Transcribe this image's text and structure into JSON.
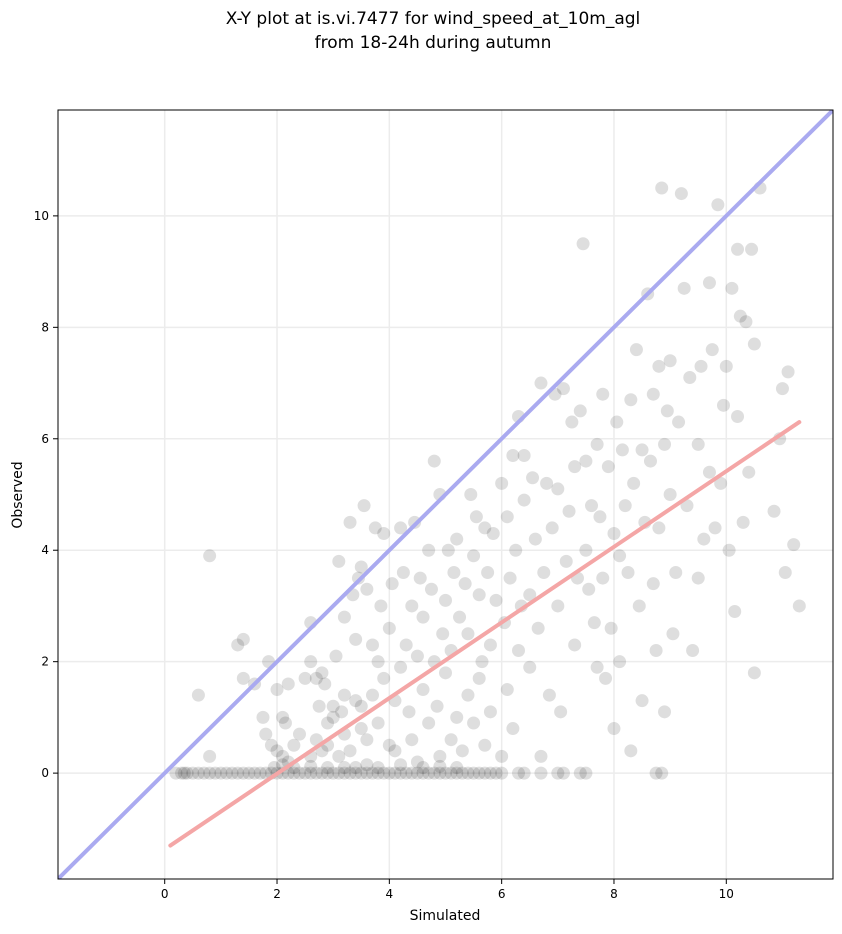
{
  "chart_data": {
    "type": "scatter",
    "title_line1": "X-Y plot at is.vi.7477 for wind_speed_at_10m_agl",
    "title_line2": "from 18-24h during autumn",
    "xlabel": "Simulated",
    "ylabel": "Observed",
    "xlim": [
      -1.9,
      11.9
    ],
    "ylim": [
      -1.9,
      11.9
    ],
    "xticks": [
      0,
      2,
      4,
      6,
      8,
      10
    ],
    "yticks": [
      0,
      2,
      4,
      6,
      8,
      10
    ],
    "grid": true,
    "colors": {
      "points": "#000000",
      "identity_line": "#aaaaf0",
      "fit_line": "#f4a6a6",
      "grid": "#ececec"
    },
    "identity_line": {
      "x": [
        -1.9,
        11.9
      ],
      "y": [
        -1.9,
        11.9
      ]
    },
    "fit_line": {
      "x": [
        0.1,
        11.3
      ],
      "y": [
        -1.3,
        6.3
      ]
    },
    "points": [
      [
        0.2,
        0
      ],
      [
        0.3,
        0
      ],
      [
        0.35,
        0
      ],
      [
        0.4,
        0
      ],
      [
        0.5,
        0
      ],
      [
        0.6,
        0
      ],
      [
        0.7,
        0
      ],
      [
        0.8,
        0
      ],
      [
        0.9,
        0
      ],
      [
        1.0,
        0
      ],
      [
        1.1,
        0
      ],
      [
        1.2,
        0
      ],
      [
        1.3,
        0
      ],
      [
        1.4,
        0
      ],
      [
        1.5,
        0
      ],
      [
        1.6,
        0
      ],
      [
        1.7,
        0
      ],
      [
        1.8,
        0
      ],
      [
        1.9,
        0
      ],
      [
        2.0,
        0
      ],
      [
        2.1,
        0
      ],
      [
        2.2,
        0
      ],
      [
        2.3,
        0
      ],
      [
        2.4,
        0
      ],
      [
        2.5,
        0
      ],
      [
        2.6,
        0
      ],
      [
        2.7,
        0
      ],
      [
        2.8,
        0
      ],
      [
        2.9,
        0
      ],
      [
        3.0,
        0
      ],
      [
        3.1,
        0
      ],
      [
        3.2,
        0
      ],
      [
        3.3,
        0
      ],
      [
        3.4,
        0
      ],
      [
        3.5,
        0
      ],
      [
        3.6,
        0
      ],
      [
        3.7,
        0
      ],
      [
        3.8,
        0
      ],
      [
        3.9,
        0
      ],
      [
        4.0,
        0
      ],
      [
        4.1,
        0
      ],
      [
        4.2,
        0
      ],
      [
        4.3,
        0
      ],
      [
        4.4,
        0
      ],
      [
        4.5,
        0
      ],
      [
        4.6,
        0
      ],
      [
        4.7,
        0
      ],
      [
        4.8,
        0
      ],
      [
        4.9,
        0
      ],
      [
        5.0,
        0
      ],
      [
        5.1,
        0
      ],
      [
        5.2,
        0
      ],
      [
        5.3,
        0
      ],
      [
        5.4,
        0
      ],
      [
        5.5,
        0
      ],
      [
        5.6,
        0
      ],
      [
        5.7,
        0
      ],
      [
        5.8,
        0
      ],
      [
        5.9,
        0
      ],
      [
        6.0,
        0
      ],
      [
        6.3,
        0
      ],
      [
        6.4,
        0
      ],
      [
        6.7,
        0
      ],
      [
        7.0,
        0
      ],
      [
        7.1,
        0
      ],
      [
        7.4,
        0
      ],
      [
        7.5,
        0
      ],
      [
        8.75,
        0
      ],
      [
        8.85,
        0
      ],
      [
        1.95,
        0.1
      ],
      [
        2.3,
        0.1
      ],
      [
        2.9,
        0.1
      ],
      [
        3.2,
        0.1
      ],
      [
        3.4,
        0.1
      ],
      [
        3.8,
        0.1
      ],
      [
        4.2,
        0.15
      ],
      [
        4.6,
        0.1
      ],
      [
        5.2,
        0.1
      ],
      [
        2.1,
        0.15
      ],
      [
        2.6,
        0.12
      ],
      [
        3.6,
        0.15
      ],
      [
        4.9,
        0.12
      ],
      [
        0.6,
        1.4
      ],
      [
        0.8,
        0.3
      ],
      [
        0.8,
        3.9
      ],
      [
        1.3,
        2.3
      ],
      [
        1.4,
        2.4
      ],
      [
        1.4,
        1.7
      ],
      [
        1.6,
        1.6
      ],
      [
        1.75,
        1.0
      ],
      [
        1.8,
        0.7
      ],
      [
        1.85,
        2.0
      ],
      [
        1.9,
        0.5
      ],
      [
        2.0,
        1.5
      ],
      [
        2.0,
        0.4
      ],
      [
        2.1,
        0.3
      ],
      [
        2.1,
        1.0
      ],
      [
        2.15,
        0.9
      ],
      [
        2.2,
        0.2
      ],
      [
        2.2,
        1.6
      ],
      [
        2.3,
        0.5
      ],
      [
        2.4,
        0.7
      ],
      [
        2.5,
        1.7
      ],
      [
        2.6,
        0.3
      ],
      [
        2.6,
        2.0
      ],
      [
        2.6,
        2.7
      ],
      [
        2.7,
        1.7
      ],
      [
        2.7,
        0.6
      ],
      [
        2.75,
        1.2
      ],
      [
        2.8,
        0.4
      ],
      [
        2.8,
        1.8
      ],
      [
        2.85,
        1.6
      ],
      [
        2.9,
        0.9
      ],
      [
        2.9,
        0.5
      ],
      [
        3.0,
        1.0
      ],
      [
        3.0,
        1.2
      ],
      [
        3.05,
        2.1
      ],
      [
        3.1,
        0.3
      ],
      [
        3.1,
        3.8
      ],
      [
        3.15,
        1.1
      ],
      [
        3.2,
        2.8
      ],
      [
        3.2,
        0.7
      ],
      [
        3.2,
        1.4
      ],
      [
        3.3,
        4.5
      ],
      [
        3.3,
        0.4
      ],
      [
        3.35,
        3.2
      ],
      [
        3.4,
        1.3
      ],
      [
        3.4,
        2.4
      ],
      [
        3.45,
        3.5
      ],
      [
        3.5,
        3.7
      ],
      [
        3.5,
        0.8
      ],
      [
        3.5,
        1.2
      ],
      [
        3.55,
        4.8
      ],
      [
        3.6,
        0.6
      ],
      [
        3.6,
        3.3
      ],
      [
        3.7,
        2.3
      ],
      [
        3.7,
        1.4
      ],
      [
        3.75,
        4.4
      ],
      [
        3.8,
        0.9
      ],
      [
        3.8,
        2.0
      ],
      [
        3.85,
        3.0
      ],
      [
        3.9,
        1.7
      ],
      [
        3.9,
        4.3
      ],
      [
        4.0,
        0.5
      ],
      [
        4.0,
        2.6
      ],
      [
        4.05,
        3.4
      ],
      [
        4.1,
        1.3
      ],
      [
        4.1,
        0.4
      ],
      [
        4.2,
        1.9
      ],
      [
        4.2,
        4.4
      ],
      [
        4.25,
        3.6
      ],
      [
        4.3,
        2.3
      ],
      [
        4.35,
        1.1
      ],
      [
        4.4,
        0.6
      ],
      [
        4.4,
        3.0
      ],
      [
        4.45,
        4.5
      ],
      [
        4.5,
        2.1
      ],
      [
        4.5,
        0.2
      ],
      [
        4.55,
        3.5
      ],
      [
        4.6,
        1.5
      ],
      [
        4.6,
        2.8
      ],
      [
        4.7,
        0.9
      ],
      [
        4.7,
        4.0
      ],
      [
        4.75,
        3.3
      ],
      [
        4.8,
        5.6
      ],
      [
        4.8,
        2.0
      ],
      [
        4.85,
        1.2
      ],
      [
        4.9,
        0.3
      ],
      [
        4.9,
        5.0
      ],
      [
        4.95,
        2.5
      ],
      [
        5.0,
        1.8
      ],
      [
        5.0,
        3.1
      ],
      [
        5.05,
        4.0
      ],
      [
        5.1,
        0.6
      ],
      [
        5.1,
        2.2
      ],
      [
        5.15,
        3.6
      ],
      [
        5.2,
        1.0
      ],
      [
        5.2,
        4.2
      ],
      [
        5.25,
        2.8
      ],
      [
        5.3,
        0.4
      ],
      [
        5.35,
        3.4
      ],
      [
        5.4,
        1.4
      ],
      [
        5.4,
        2.5
      ],
      [
        5.45,
        5.0
      ],
      [
        5.5,
        0.9
      ],
      [
        5.5,
        3.9
      ],
      [
        5.55,
        4.6
      ],
      [
        5.6,
        1.7
      ],
      [
        5.6,
        3.2
      ],
      [
        5.65,
        2.0
      ],
      [
        5.7,
        0.5
      ],
      [
        5.7,
        4.4
      ],
      [
        5.75,
        3.6
      ],
      [
        5.8,
        2.3
      ],
      [
        5.8,
        1.1
      ],
      [
        5.85,
        4.3
      ],
      [
        5.9,
        3.1
      ],
      [
        6.0,
        5.2
      ],
      [
        6.0,
        0.3
      ],
      [
        6.05,
        2.7
      ],
      [
        6.1,
        4.6
      ],
      [
        6.1,
        1.5
      ],
      [
        6.15,
        3.5
      ],
      [
        6.2,
        0.8
      ],
      [
        6.2,
        5.7
      ],
      [
        6.25,
        4.0
      ],
      [
        6.3,
        6.4
      ],
      [
        6.3,
        2.2
      ],
      [
        6.35,
        3.0
      ],
      [
        6.4,
        5.7
      ],
      [
        6.4,
        4.9
      ],
      [
        6.5,
        3.2
      ],
      [
        6.5,
        1.9
      ],
      [
        6.55,
        5.3
      ],
      [
        6.6,
        4.2
      ],
      [
        6.65,
        2.6
      ],
      [
        6.7,
        7.0
      ],
      [
        6.7,
        0.3
      ],
      [
        6.75,
        3.6
      ],
      [
        6.8,
        5.2
      ],
      [
        6.85,
        1.4
      ],
      [
        6.9,
        4.4
      ],
      [
        6.95,
        6.8
      ],
      [
        7.0,
        3.0
      ],
      [
        7.0,
        5.1
      ],
      [
        7.05,
        1.1
      ],
      [
        7.1,
        6.9
      ],
      [
        7.15,
        3.8
      ],
      [
        7.2,
        4.7
      ],
      [
        7.25,
        6.3
      ],
      [
        7.3,
        2.3
      ],
      [
        7.3,
        5.5
      ],
      [
        7.35,
        3.5
      ],
      [
        7.4,
        6.5
      ],
      [
        7.45,
        9.5
      ],
      [
        7.5,
        4.0
      ],
      [
        7.5,
        5.6
      ],
      [
        7.55,
        3.3
      ],
      [
        7.6,
        4.8
      ],
      [
        7.65,
        2.7
      ],
      [
        7.7,
        5.9
      ],
      [
        7.7,
        1.9
      ],
      [
        7.75,
        4.6
      ],
      [
        7.8,
        6.8
      ],
      [
        7.8,
        3.5
      ],
      [
        7.85,
        1.7
      ],
      [
        7.9,
        5.5
      ],
      [
        7.95,
        2.6
      ],
      [
        8.0,
        4.3
      ],
      [
        8.0,
        0.8
      ],
      [
        8.05,
        6.3
      ],
      [
        8.1,
        3.9
      ],
      [
        8.1,
        2.0
      ],
      [
        8.15,
        5.8
      ],
      [
        8.2,
        4.8
      ],
      [
        8.25,
        3.6
      ],
      [
        8.3,
        6.7
      ],
      [
        8.3,
        0.4
      ],
      [
        8.35,
        5.2
      ],
      [
        8.4,
        7.6
      ],
      [
        8.45,
        3.0
      ],
      [
        8.5,
        5.8
      ],
      [
        8.5,
        1.3
      ],
      [
        8.55,
        4.5
      ],
      [
        8.6,
        8.6
      ],
      [
        8.65,
        5.6
      ],
      [
        8.7,
        3.4
      ],
      [
        8.7,
        6.8
      ],
      [
        8.75,
        2.2
      ],
      [
        8.8,
        7.3
      ],
      [
        8.8,
        4.4
      ],
      [
        8.85,
        10.5
      ],
      [
        8.9,
        5.9
      ],
      [
        8.9,
        1.1
      ],
      [
        8.95,
        6.5
      ],
      [
        9.0,
        5.0
      ],
      [
        9.0,
        7.4
      ],
      [
        9.05,
        2.5
      ],
      [
        9.1,
        3.6
      ],
      [
        9.15,
        6.3
      ],
      [
        9.2,
        10.4
      ],
      [
        9.25,
        8.7
      ],
      [
        9.3,
        4.8
      ],
      [
        9.35,
        7.1
      ],
      [
        9.4,
        2.2
      ],
      [
        9.5,
        5.9
      ],
      [
        9.5,
        3.5
      ],
      [
        9.55,
        7.3
      ],
      [
        9.6,
        4.2
      ],
      [
        9.7,
        8.8
      ],
      [
        9.7,
        5.4
      ],
      [
        9.75,
        7.6
      ],
      [
        9.8,
        4.4
      ],
      [
        9.85,
        10.2
      ],
      [
        9.9,
        5.2
      ],
      [
        9.95,
        6.6
      ],
      [
        10.0,
        7.3
      ],
      [
        10.05,
        4.0
      ],
      [
        10.1,
        8.7
      ],
      [
        10.15,
        2.9
      ],
      [
        10.2,
        9.4
      ],
      [
        10.2,
        6.4
      ],
      [
        10.25,
        8.2
      ],
      [
        10.3,
        4.5
      ],
      [
        10.35,
        8.1
      ],
      [
        10.4,
        5.4
      ],
      [
        10.45,
        9.4
      ],
      [
        10.5,
        1.8
      ],
      [
        10.5,
        7.7
      ],
      [
        10.6,
        10.5
      ],
      [
        10.85,
        4.7
      ],
      [
        10.95,
        6.0
      ],
      [
        11.0,
        6.9
      ],
      [
        11.05,
        3.6
      ],
      [
        11.1,
        7.2
      ],
      [
        11.2,
        4.1
      ],
      [
        11.3,
        3.0
      ]
    ]
  }
}
